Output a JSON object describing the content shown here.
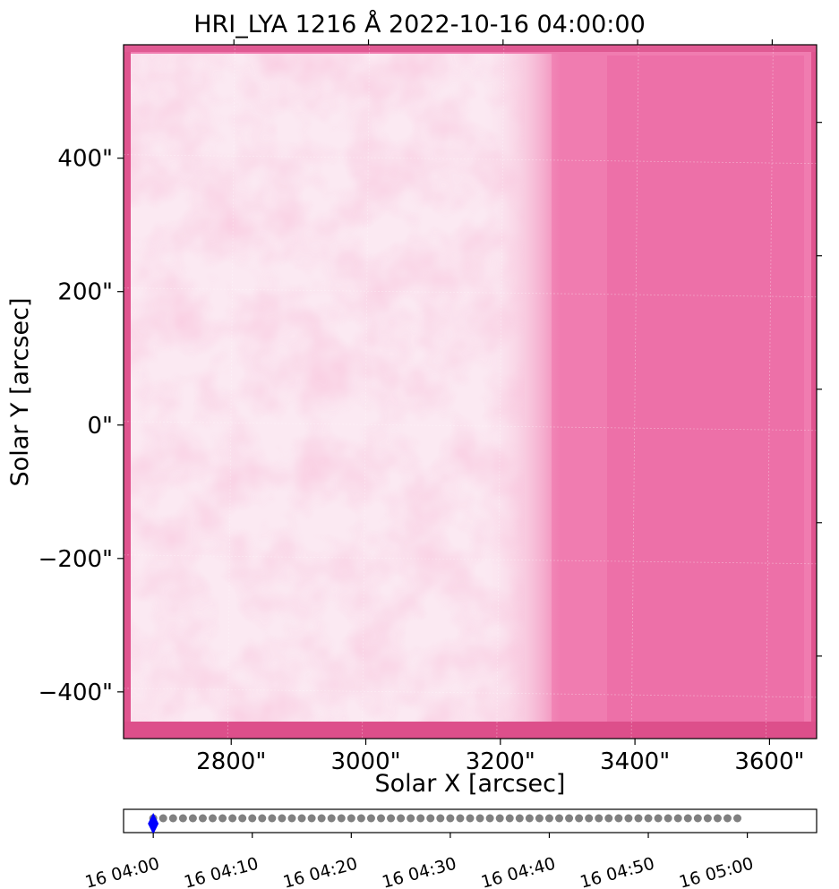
{
  "chart_data": {
    "type": "heatmap",
    "title": "HRI_LYA 1216 Å 2022-10-16 04:00:00",
    "xlabel": "Solar X [arcsec]",
    "ylabel": "Solar Y [arcsec]",
    "x_ticks": [
      {
        "value": 2800,
        "label": "2800\""
      },
      {
        "value": 3000,
        "label": "3000\""
      },
      {
        "value": 3200,
        "label": "3200\""
      },
      {
        "value": 3400,
        "label": "3400\""
      },
      {
        "value": 3600,
        "label": "3600\""
      }
    ],
    "y_ticks": [
      {
        "value": 400,
        "label": "400\""
      },
      {
        "value": 200,
        "label": "200\""
      },
      {
        "value": 0,
        "label": "0\""
      },
      {
        "value": -200,
        "label": "−200\""
      },
      {
        "value": -400,
        "label": "−400\""
      }
    ],
    "xlim": [
      2640,
      3670
    ],
    "ylim": [
      -470,
      570
    ],
    "colormap": [
      "#e0548f",
      "#f07cb0",
      "#f9c4dc",
      "#fdf2f7"
    ],
    "grid": true
  },
  "timeline": {
    "type": "scatter",
    "tick_labels": [
      "16 04:00",
      "16 04:10",
      "16 04:20",
      "16 04:30",
      "16 04:40",
      "16 04:50",
      "16 05:00"
    ],
    "tick_minutes": [
      0,
      10,
      20,
      30,
      40,
      50,
      60
    ],
    "range_minutes": [
      -3,
      67
    ],
    "frame_start_minute": 0,
    "frame_end_minute": 59,
    "frame_count": 60,
    "current_minute": 0,
    "point_color": "#808080",
    "current_color": "#0000ff"
  }
}
